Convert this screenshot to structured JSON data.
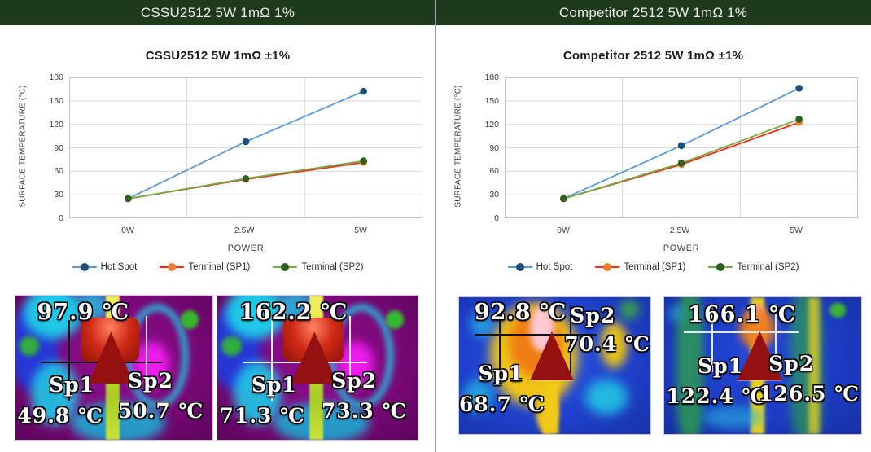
{
  "theme": {
    "header_bg": "#1e3a1c",
    "header_text": "#efeee0",
    "grid_color": "#d9d9d9",
    "plot_border_color": "#c6c6c6",
    "axis_text_color": "#404040",
    "divider_color": "#9e9e9e"
  },
  "panels": [
    {
      "header": "CSSU2512 5W 1mΩ 1%",
      "thermal_images": [
        {
          "hotspot_temp": "97.9 ℃",
          "sp1_label": "Sp1",
          "sp1_temp": "49.8 ℃",
          "sp2_label": "Sp2",
          "sp2_temp": "50.7 ℃"
        },
        {
          "hotspot_temp": "162.2 ℃",
          "sp1_label": "Sp1",
          "sp1_temp": "71.3 ℃",
          "sp2_label": "Sp2",
          "sp2_temp": "73.3 ℃"
        }
      ]
    },
    {
      "header": "Competitor 2512 5W 1mΩ 1%",
      "thermal_images": [
        {
          "hotspot_temp": "92.8 ℃",
          "sp1_label": "Sp1",
          "sp1_temp": "68.7 ℃",
          "sp2_label": "Sp2",
          "sp2_temp": "70.4 ℃"
        },
        {
          "hotspot_temp": "166.1 ℃",
          "sp1_label": "Sp1",
          "sp1_temp": "122.4 ℃",
          "sp2_label": "Sp2",
          "sp2_temp": "126.5 ℃"
        }
      ]
    }
  ],
  "chart_data": [
    {
      "type": "line",
      "title": "CSSU2512 5W 1mΩ ±1%",
      "xlabel": "POWER",
      "ylabel": "SURFACE TEMPERATURE (°C)",
      "categories": [
        "0W",
        "2.5W",
        "5W"
      ],
      "ylim": [
        0,
        180
      ],
      "yticks": [
        0,
        30,
        60,
        90,
        120,
        150,
        180
      ],
      "grid": true,
      "legend_position": "bottom",
      "series": [
        {
          "name": "Hot Spot",
          "values": [
            25,
            97.9,
            162.2
          ],
          "line_color": "#5b9bd5",
          "marker_color": "#1f4e79"
        },
        {
          "name": "Terminal (SP1)",
          "values": [
            25,
            49.8,
            71.3
          ],
          "line_color": "#ff2a14",
          "marker_color": "#ed7d31"
        },
        {
          "name": "Terminal (SP2)",
          "values": [
            25,
            50.7,
            73.3
          ],
          "line_color": "#70ad47",
          "marker_color": "#2d5f1e"
        }
      ]
    },
    {
      "type": "line",
      "title": "Competitor 2512 5W 1mΩ ±1%",
      "xlabel": "POWER",
      "ylabel": "SURFACE TEMPERATURE (°C)",
      "categories": [
        "0W",
        "2.5W",
        "5W"
      ],
      "ylim": [
        0,
        180
      ],
      "yticks": [
        0,
        30,
        60,
        90,
        120,
        150,
        180
      ],
      "grid": true,
      "legend_position": "bottom",
      "series": [
        {
          "name": "Hot Spot",
          "values": [
            25,
            92.8,
            166.1
          ],
          "line_color": "#5b9bd5",
          "marker_color": "#1f4e79"
        },
        {
          "name": "Terminal (SP1)",
          "values": [
            25,
            68.7,
            122.4
          ],
          "line_color": "#ff2a14",
          "marker_color": "#ed7d31"
        },
        {
          "name": "Terminal (SP2)",
          "values": [
            25,
            70.4,
            126.5
          ],
          "line_color": "#70ad47",
          "marker_color": "#2d5f1e"
        }
      ]
    }
  ]
}
